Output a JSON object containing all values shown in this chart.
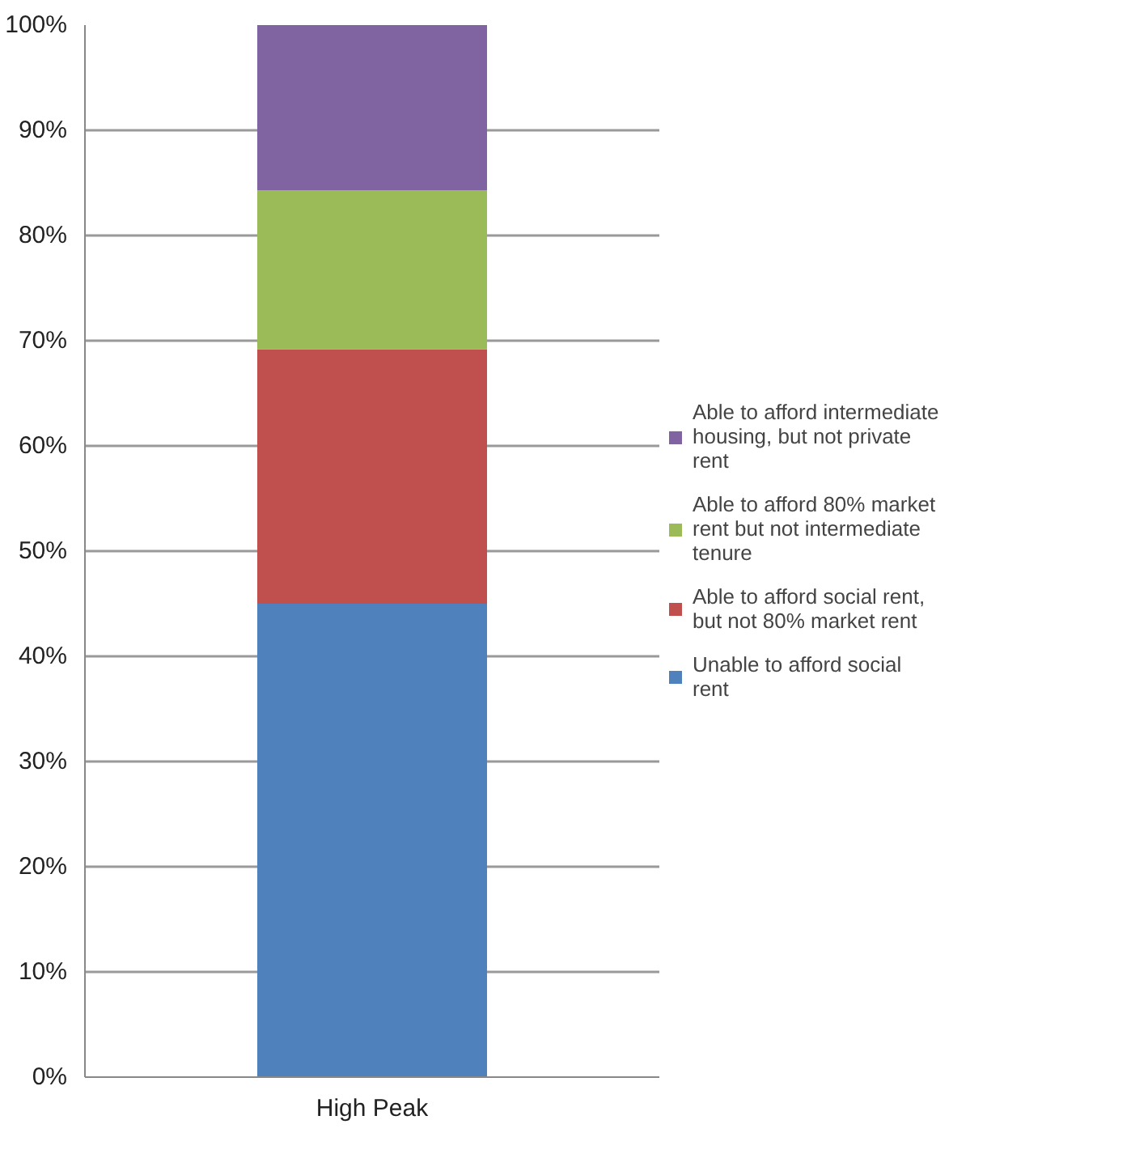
{
  "chart_data": {
    "type": "bar",
    "stacked": true,
    "categories": [
      "High Peak"
    ],
    "series": [
      {
        "name": "Unable to afford social rent",
        "color": "#4f81bd",
        "values": [
          45
        ]
      },
      {
        "name": "Able to afford social rent, but not 80% market rent",
        "color": "#c0504d",
        "values": [
          24.2
        ]
      },
      {
        "name": "Able to afford 80% market rent but not intermediate tenure",
        "color": "#9bbb59",
        "values": [
          15.1
        ]
      },
      {
        "name": "Able to afford intermediate housing, but not private rent",
        "color": "#8064a2",
        "values": [
          15.7
        ]
      }
    ],
    "ylim": [
      0,
      100
    ],
    "yticks": [
      {
        "value": 0,
        "label": "0%"
      },
      {
        "value": 10,
        "label": "10%"
      },
      {
        "value": 20,
        "label": "20%"
      },
      {
        "value": 30,
        "label": "30%"
      },
      {
        "value": 40,
        "label": "40%"
      },
      {
        "value": 50,
        "label": "50%"
      },
      {
        "value": 60,
        "label": "60%"
      },
      {
        "value": 70,
        "label": "70%"
      },
      {
        "value": 80,
        "label": "80%"
      },
      {
        "value": 90,
        "label": "90%"
      },
      {
        "value": 100,
        "label": "100%"
      }
    ],
    "grid": "y",
    "legend": "right"
  }
}
